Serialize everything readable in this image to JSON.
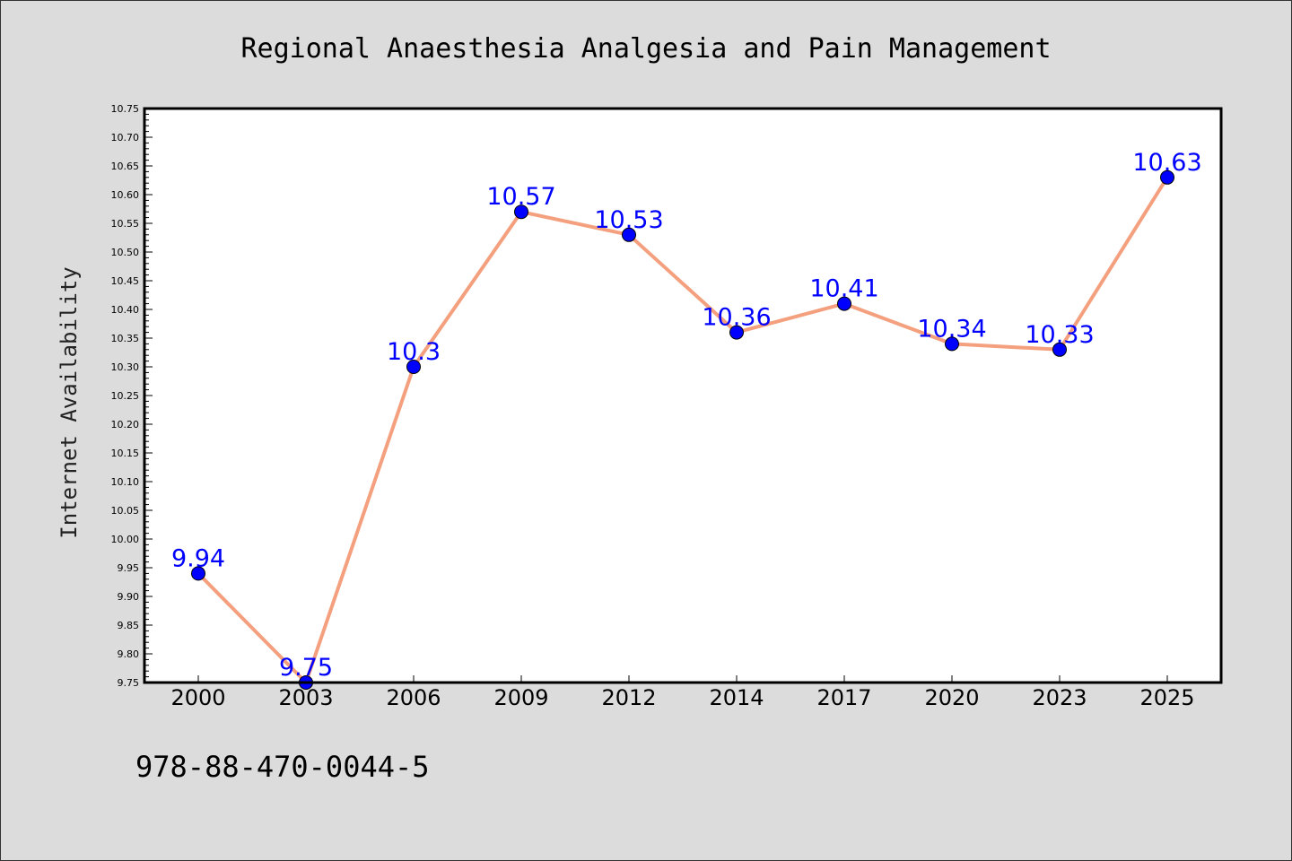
{
  "chart_data": {
    "type": "line",
    "title": "Regional Anaesthesia Analgesia and Pain Management",
    "xlabel": "",
    "ylabel": "Internet Availability",
    "categories": [
      "2000",
      "2003",
      "2006",
      "2009",
      "2012",
      "2014",
      "2017",
      "2020",
      "2023",
      "2025"
    ],
    "series": [
      {
        "values": [
          9.94,
          9.75,
          10.3,
          10.57,
          10.53,
          10.36,
          10.41,
          10.34,
          10.33,
          10.63
        ],
        "data_labels": [
          "9.94",
          "9.75",
          "10.3",
          "10.57",
          "10.53",
          "10.36",
          "10.41",
          "10.34",
          "10.33",
          "10.63"
        ],
        "line_color": "#f4a07e",
        "marker_color": "#0000ff"
      }
    ],
    "ylim": [
      9.75,
      10.75
    ],
    "yticks": [
      "9.75",
      "9.80",
      "9.85",
      "9.90",
      "9.95",
      "10.00",
      "10.05",
      "10.10",
      "10.15",
      "10.20",
      "10.25",
      "10.30",
      "10.35",
      "10.40",
      "10.45",
      "10.50",
      "10.55",
      "10.60",
      "10.65",
      "10.70",
      "10.75"
    ],
    "grid": false
  },
  "footer": {
    "isbn": "978-88-470-0044-5"
  }
}
